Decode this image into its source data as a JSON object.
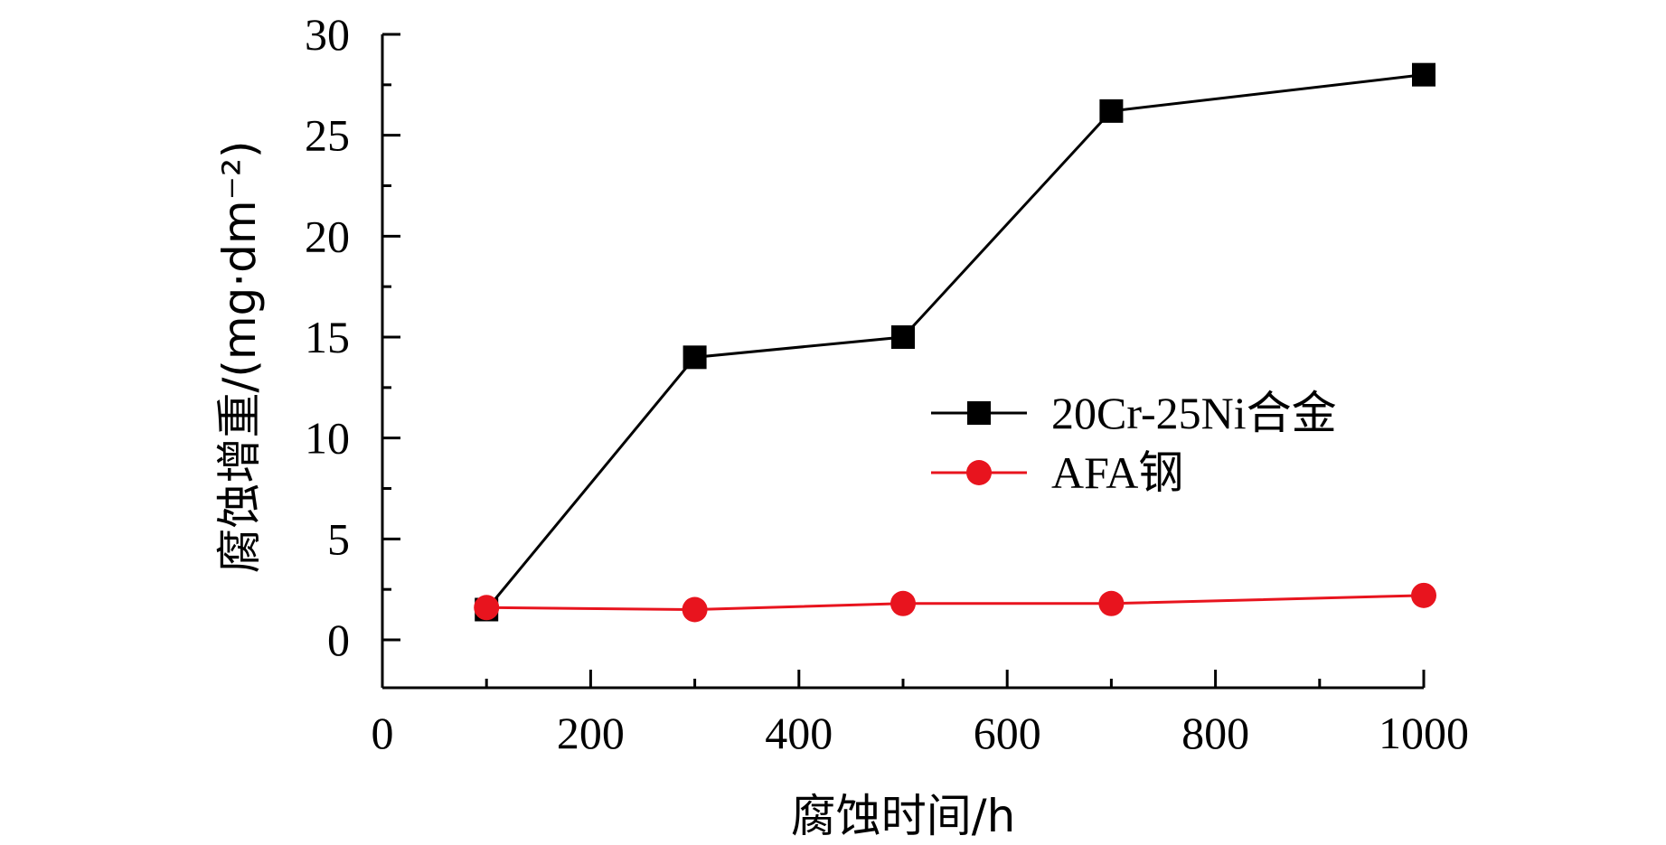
{
  "chart_data": {
    "type": "line",
    "xlabel": "腐蚀时间/h",
    "ylabel": "腐蚀增重/(mg·dm⁻²)",
    "xlim": [
      0,
      1000
    ],
    "ylim": [
      0,
      30
    ],
    "x_ticks": [
      "0",
      "200",
      "400",
      "600",
      "800",
      "1000"
    ],
    "y_ticks": [
      "0",
      "5",
      "10",
      "15",
      "20",
      "25",
      "30"
    ],
    "grid": false,
    "legend_position": "right",
    "series": [
      {
        "name": "20Cr-25Ni合金",
        "color": "#000000",
        "marker": "square",
        "x": [
          100,
          300,
          500,
          700,
          1000
        ],
        "y": [
          1.5,
          14.0,
          15.0,
          26.2,
          28.0
        ]
      },
      {
        "name": "AFA钢",
        "color": "#e8141e",
        "marker": "circle",
        "x": [
          100,
          300,
          500,
          700,
          1000
        ],
        "y": [
          1.6,
          1.5,
          1.8,
          1.8,
          2.2
        ]
      }
    ]
  }
}
